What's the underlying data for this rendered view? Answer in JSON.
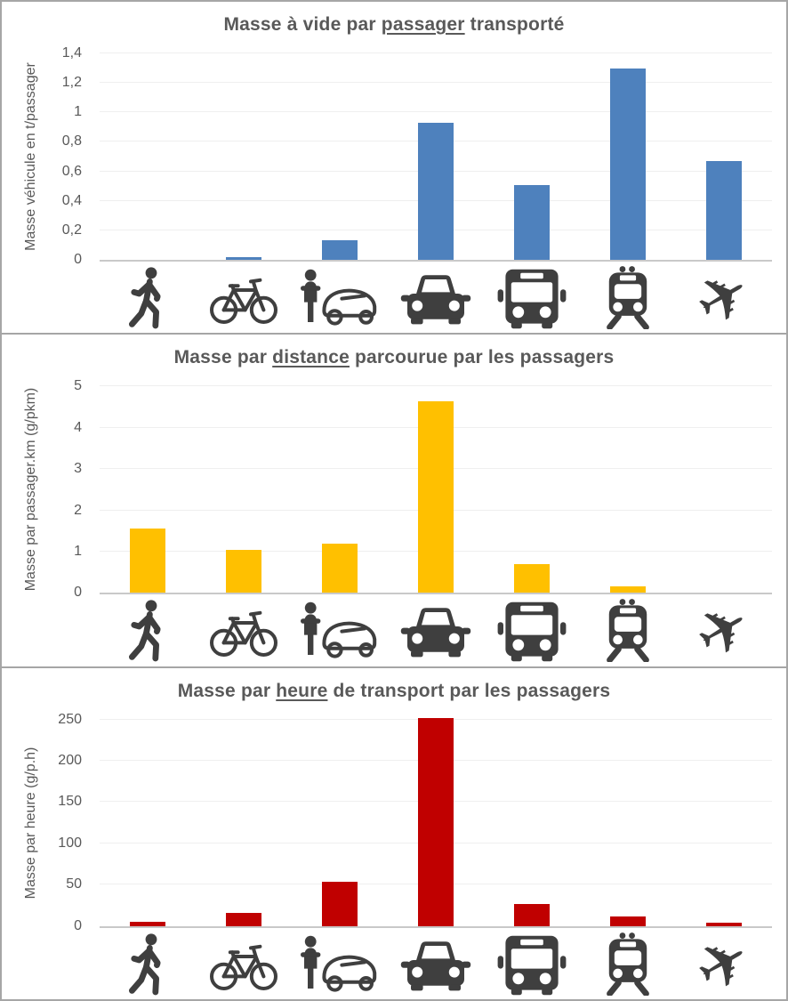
{
  "page": {
    "background": "#ffffff",
    "border_color": "#a6a6a6",
    "icon_color": "#3f3f3f",
    "title_color": "#595959",
    "axis_text_color": "#595959",
    "gridline_color": "#efefef",
    "zero_line_color": "#c9c9c9"
  },
  "icons": [
    {
      "name": "pedestrian-icon",
      "meaning": "walking pedestrian"
    },
    {
      "name": "bicycle-icon",
      "meaning": "bicycle"
    },
    {
      "name": "velomobile-icon",
      "meaning": "cyclist with velomobile / covered cycle"
    },
    {
      "name": "car-icon",
      "meaning": "car front view"
    },
    {
      "name": "bus-icon",
      "meaning": "bus front view"
    },
    {
      "name": "tram-icon",
      "meaning": "tram / train front view"
    },
    {
      "name": "airplane-icon",
      "meaning": "airplane"
    }
  ],
  "chart_data": [
    {
      "type": "bar",
      "title": "Masse à vide par passager transporté",
      "title_parts": {
        "pre": "Masse à vide par ",
        "underlined": "passager",
        "post": " transporté"
      },
      "ylabel": "Masse véhicule en t/passager",
      "categories": [
        "pedestrian",
        "bicycle",
        "velomobile",
        "car",
        "bus",
        "tram",
        "airplane"
      ],
      "values": [
        0,
        0.02,
        0.13,
        0.93,
        0.51,
        1.3,
        0.67
      ],
      "ylim": [
        0,
        1.4
      ],
      "yticks": [
        0,
        0.2,
        0.4,
        0.6,
        0.8,
        1.0,
        1.2,
        1.4
      ],
      "ytick_labels": [
        "0",
        "0,2",
        "0,4",
        "0,6",
        "0,8",
        "1",
        "1,2",
        "1,4"
      ],
      "bar_color": "#4e81bd",
      "grid": true,
      "legend": "none"
    },
    {
      "type": "bar",
      "title": "Masse par distance parcourue par les passagers",
      "title_parts": {
        "pre": "Masse par ",
        "underlined": "distance",
        "post": " parcourue par les passagers"
      },
      "ylabel": "Masse par passager.km (g/pkm)",
      "categories": [
        "pedestrian",
        "bicycle",
        "velomobile",
        "car",
        "bus",
        "tram",
        "airplane"
      ],
      "values": [
        1.55,
        1.05,
        1.2,
        4.65,
        0.7,
        0.15,
        0
      ],
      "ylim": [
        0,
        5
      ],
      "yticks": [
        0,
        1,
        2,
        3,
        4,
        5
      ],
      "ytick_labels": [
        "0",
        "1",
        "2",
        "3",
        "4",
        "5"
      ],
      "bar_color": "#ffc000",
      "grid": true,
      "legend": "none"
    },
    {
      "type": "bar",
      "title": "Masse par heure de transport par les passagers",
      "title_parts": {
        "pre": "Masse par ",
        "underlined": "heure",
        "post": " de transport par les passagers"
      },
      "ylabel": "Masse par heure (g/p.h)",
      "categories": [
        "pedestrian",
        "bicycle",
        "velomobile",
        "car",
        "bus",
        "tram",
        "airplane"
      ],
      "values": [
        5,
        16,
        53,
        252,
        27,
        11,
        4
      ],
      "ylim": [
        0,
        250
      ],
      "yticks": [
        0,
        50,
        100,
        150,
        200,
        250
      ],
      "ytick_labels": [
        "0",
        "50",
        "100",
        "150",
        "200",
        "250"
      ],
      "bar_color": "#c00000",
      "grid": true,
      "legend": "none"
    }
  ]
}
